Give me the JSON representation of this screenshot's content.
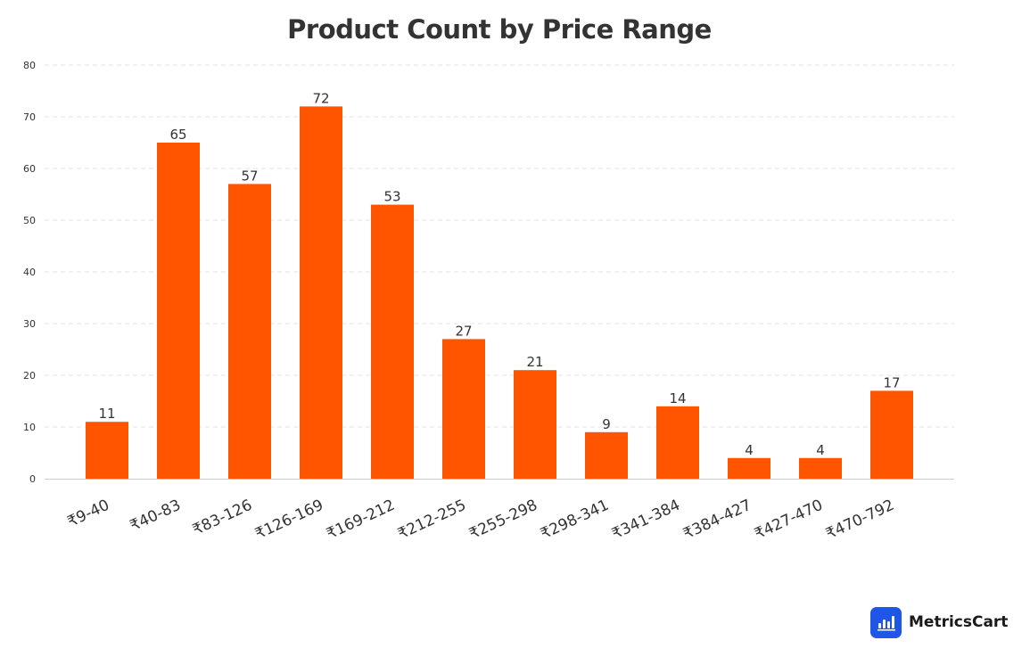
{
  "chart_data": {
    "type": "bar",
    "title": "Product Count by Price Range",
    "categories": [
      "₹9-40",
      "₹40-83",
      "₹83-126",
      "₹126-169",
      "₹169-212",
      "₹212-255",
      "₹255-298",
      "₹298-341",
      "₹341-384",
      "₹384-427",
      "₹427-470",
      "₹470-792"
    ],
    "values": [
      11,
      65,
      57,
      72,
      53,
      27,
      21,
      9,
      14,
      4,
      4,
      17
    ],
    "xlabel": "",
    "ylabel": "",
    "ylim": [
      0,
      80
    ],
    "yticks": [
      0,
      10,
      20,
      30,
      40,
      50,
      60,
      70,
      80
    ],
    "grid": "horizontal-dashed",
    "legend": "none",
    "bar_color": "#FF5500",
    "data_labels": true
  },
  "brand": {
    "name": "MetricsCart",
    "logo_icon": "bar-chart-logo-icon",
    "logo_color": "#1E56E8"
  }
}
